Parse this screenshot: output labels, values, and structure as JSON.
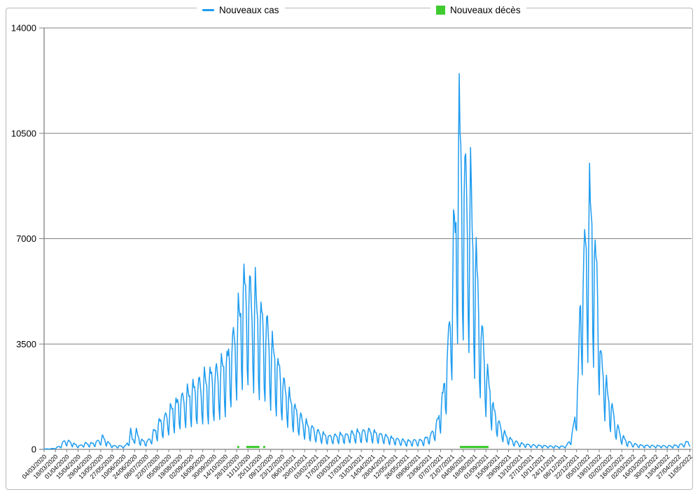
{
  "legend": {
    "position": "top",
    "items": [
      {
        "label": "Nouveaux cas",
        "marker": "line",
        "color": "#1e9cf0"
      },
      {
        "label": "Nouveaux décès",
        "marker": "square",
        "color": "#3fcb30"
      }
    ]
  },
  "chart_data": {
    "type": "line",
    "title": "",
    "grid": "horizontal",
    "legend_position": "top",
    "ylim": [
      0,
      14000
    ],
    "y_ticks": [
      0,
      3500,
      7000,
      10500,
      14000
    ],
    "y_tick_labels": [
      "0",
      "3500",
      "7000",
      "10500",
      "14000"
    ],
    "x_start_date": "04/03/2020",
    "x_end_date": "11/05/2022",
    "x_tick_interval_days": 14,
    "x_total_days": 798,
    "x_tick_labels": [
      "04/03/2020",
      "18/03/2020",
      "01/04/2020",
      "15/04/2020",
      "29/04/2020",
      "13/05/2020",
      "27/05/2020",
      "10/06/2020",
      "24/06/2020",
      "08/07/2020",
      "22/07/2020",
      "05/08/2020",
      "19/08/2020",
      "02/09/2020",
      "16/09/2020",
      "30/09/2020",
      "14/10/2020",
      "28/10/2020",
      "11/11/2020",
      "25/11/2020",
      "09/12/2020",
      "23/12/2020",
      "06/01/2021",
      "20/01/2021",
      "03/02/2021",
      "17/02/2021",
      "03/03/2021",
      "17/03/2021",
      "31/03/2021",
      "14/04/2021",
      "28/04/2021",
      "12/05/2021",
      "26/05/2021",
      "09/06/2021",
      "23/06/2021",
      "07/07/2021",
      "21/07/2021",
      "04/08/2021",
      "18/08/2021",
      "01/09/2021",
      "15/09/2021",
      "29/09/2021",
      "13/10/2021",
      "27/10/2021",
      "10/11/2021",
      "24/11/2021",
      "08/12/2021",
      "22/12/2021",
      "05/01/2022",
      "19/01/2022",
      "02/02/2022",
      "16/02/2022",
      "02/03/2022",
      "16/03/2022",
      "30/03/2022",
      "13/04/2022",
      "27/04/2022",
      "11/05/2022"
    ],
    "series": [
      {
        "name": "Nouveaux cas",
        "type": "line",
        "color": "#1e9cf0",
        "line_width": 1.5,
        "description": "Daily new cases, strong weekly sawtooth oscillation; wave peaks ~6200 (09/11/2020), ~12000 (28/07/2021), ~9300 (10/01/2022)",
        "weekday_multiplier_pattern": [
          0.34,
          0.8,
          1.0,
          0.94,
          0.88,
          0.79,
          0.46
        ],
        "envelope_weekly_high_by_day": [
          [
            0,
            12
          ],
          [
            7,
            20
          ],
          [
            14,
            45
          ],
          [
            21,
            150
          ],
          [
            23,
            260
          ],
          [
            26,
            330
          ],
          [
            30,
            310
          ],
          [
            33,
            280
          ],
          [
            37,
            210
          ],
          [
            41,
            160
          ],
          [
            44,
            140
          ],
          [
            51,
            230
          ],
          [
            58,
            220
          ],
          [
            65,
            280
          ],
          [
            72,
            460
          ],
          [
            76,
            380
          ],
          [
            79,
            250
          ],
          [
            86,
            130
          ],
          [
            93,
            130
          ],
          [
            100,
            120
          ],
          [
            105,
            350
          ],
          [
            107,
            760
          ],
          [
            109,
            380
          ],
          [
            114,
            680
          ],
          [
            118,
            420
          ],
          [
            121,
            330
          ],
          [
            128,
            300
          ],
          [
            135,
            620
          ],
          [
            142,
            1000
          ],
          [
            149,
            1180
          ],
          [
            156,
            1500
          ],
          [
            163,
            1750
          ],
          [
            170,
            1950
          ],
          [
            177,
            2100
          ],
          [
            184,
            2300
          ],
          [
            191,
            2400
          ],
          [
            198,
            2550
          ],
          [
            205,
            2700
          ],
          [
            212,
            2800
          ],
          [
            219,
            3100
          ],
          [
            226,
            3400
          ],
          [
            233,
            4100
          ],
          [
            240,
            5000
          ],
          [
            247,
            6200
          ],
          [
            254,
            5800
          ],
          [
            261,
            5600
          ],
          [
            268,
            4900
          ],
          [
            275,
            4500
          ],
          [
            282,
            3800
          ],
          [
            289,
            3200
          ],
          [
            296,
            2500
          ],
          [
            303,
            2000
          ],
          [
            310,
            1550
          ],
          [
            317,
            1200
          ],
          [
            324,
            950
          ],
          [
            331,
            800
          ],
          [
            338,
            660
          ],
          [
            345,
            570
          ],
          [
            352,
            490
          ],
          [
            359,
            520
          ],
          [
            366,
            560
          ],
          [
            373,
            540
          ],
          [
            380,
            610
          ],
          [
            387,
            640
          ],
          [
            394,
            660
          ],
          [
            401,
            690
          ],
          [
            408,
            640
          ],
          [
            415,
            560
          ],
          [
            422,
            510
          ],
          [
            429,
            440
          ],
          [
            436,
            390
          ],
          [
            443,
            340
          ],
          [
            450,
            310
          ],
          [
            457,
            330
          ],
          [
            464,
            320
          ],
          [
            471,
            400
          ],
          [
            478,
            550
          ],
          [
            485,
            950
          ],
          [
            492,
            1900
          ],
          [
            499,
            3800
          ],
          [
            506,
            7600
          ],
          [
            513,
            12000
          ],
          [
            516,
            10900
          ],
          [
            520,
            9900
          ],
          [
            523,
            9700
          ],
          [
            527,
            9500
          ],
          [
            530,
            8000
          ],
          [
            534,
            7000
          ],
          [
            537,
            5500
          ],
          [
            541,
            4400
          ],
          [
            544,
            3600
          ],
          [
            548,
            2800
          ],
          [
            551,
            2300
          ],
          [
            555,
            1600
          ],
          [
            562,
            1000
          ],
          [
            569,
            600
          ],
          [
            576,
            390
          ],
          [
            583,
            280
          ],
          [
            590,
            215
          ],
          [
            597,
            180
          ],
          [
            604,
            160
          ],
          [
            611,
            150
          ],
          [
            618,
            140
          ],
          [
            625,
            125
          ],
          [
            632,
            115
          ],
          [
            639,
            110
          ],
          [
            646,
            140
          ],
          [
            653,
            600
          ],
          [
            656,
            1300
          ],
          [
            660,
            2600
          ],
          [
            664,
            7300
          ],
          [
            667,
            6800
          ],
          [
            670,
            8400
          ],
          [
            674,
            9300
          ],
          [
            677,
            8800
          ],
          [
            681,
            7400
          ],
          [
            684,
            6500
          ],
          [
            688,
            3400
          ],
          [
            692,
            3000
          ],
          [
            695,
            2350
          ],
          [
            699,
            1800
          ],
          [
            702,
            1550
          ],
          [
            706,
            1000
          ],
          [
            709,
            800
          ],
          [
            713,
            550
          ],
          [
            716,
            430
          ],
          [
            720,
            310
          ],
          [
            727,
            220
          ],
          [
            734,
            170
          ],
          [
            741,
            145
          ],
          [
            748,
            150
          ],
          [
            755,
            130
          ],
          [
            762,
            140
          ],
          [
            769,
            125
          ],
          [
            776,
            135
          ],
          [
            783,
            155
          ],
          [
            790,
            210
          ],
          [
            798,
            330
          ]
        ]
      },
      {
        "name": "Nouveaux décès",
        "type": "scatter",
        "color": "#3fcb30",
        "marker": "square",
        "description": "Near-zero green square markers in two clusters: Nov 2020 and Aug-Sep 2021",
        "marker_days": [
          240,
          251,
          253,
          255,
          257,
          259,
          261,
          263,
          265,
          272,
          515,
          516,
          517,
          518,
          519,
          520,
          521,
          522,
          523,
          524,
          525,
          526,
          527,
          528,
          529,
          530,
          531,
          532,
          533,
          534,
          535,
          536,
          537,
          538,
          539,
          540,
          541,
          542,
          543,
          544,
          545,
          546,
          547,
          548
        ]
      }
    ],
    "colors": {
      "grid": "#808080",
      "axis": "#808080",
      "outer_border": "#b9b9b9",
      "text": "#000000",
      "background": "#ffffff"
    }
  }
}
